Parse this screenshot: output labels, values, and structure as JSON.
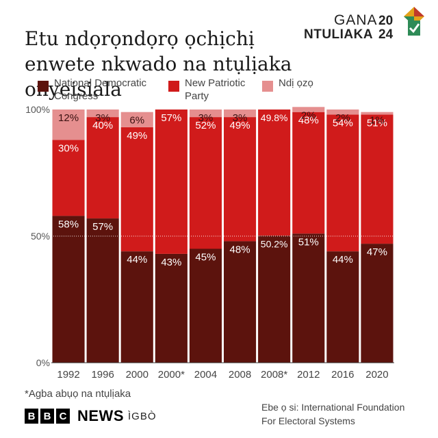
{
  "header": {
    "title_line1": "Etu ndọrọndọrọ ọchịchị",
    "title_line2": "enwete nkwado na ntụlịaka onyeisiala"
  },
  "logo": {
    "word1": "GANA",
    "word2": "NTULIAKA",
    "year_top": "20",
    "year_bottom": "24"
  },
  "footer": {
    "note": "*Agba abụọ na ntụlịaka",
    "source_line1": "Ebe ọ si: International Foundation",
    "source_line2": "For Electoral Systems",
    "brand_letters": [
      "B",
      "B",
      "C"
    ],
    "brand_news": "NEWS",
    "brand_language": "ÌGBÒ"
  },
  "chart_data": {
    "type": "bar",
    "stacked": true,
    "title": "Etu ndọrọndọrọ ọchịchị enwete nkwado na ntụlịaka onyeisiala",
    "categories": [
      "1992",
      "1996",
      "2000",
      "2000*",
      "2004",
      "2008",
      "2008*",
      "2012",
      "2016",
      "2020"
    ],
    "series": [
      {
        "name": "National Democratic Congress",
        "name_lines": [
          "National Democratic",
          "Congress"
        ],
        "color": "#5c130d",
        "values": [
          58,
          57,
          44,
          43,
          45,
          48,
          50.2,
          51,
          44,
          47
        ],
        "labels": [
          "58%",
          "57%",
          "44%",
          "43%",
          "45%",
          "48%",
          "50.2%",
          "51%",
          "44%",
          "47%"
        ]
      },
      {
        "name": "New Patriotic Party",
        "name_lines": [
          "New Patriotic",
          "Party"
        ],
        "color": "#d01b1b",
        "values": [
          30,
          40,
          49,
          57,
          52,
          49,
          49.8,
          48,
          54,
          51
        ],
        "labels": [
          "30%",
          "40%",
          "49%",
          "57%",
          "52%",
          "49%",
          "49.8%",
          "48%",
          "54%",
          "51%"
        ]
      },
      {
        "name": "Ndị ọzọ",
        "name_lines": [
          "Ndị ọzọ"
        ],
        "color": "#e58f8f",
        "values": [
          12,
          3,
          6,
          0,
          3,
          3,
          0,
          2,
          2,
          1
        ],
        "labels": [
          "12%",
          "3%",
          "6%",
          "",
          "3%",
          "3%",
          "",
          "2%",
          "2%",
          "1%"
        ]
      }
    ],
    "y_ticks": [
      0,
      50,
      100
    ],
    "y_tick_labels": [
      "0%",
      "50%",
      "100%"
    ],
    "ylim": [
      0,
      100
    ],
    "legend_position": "top"
  }
}
